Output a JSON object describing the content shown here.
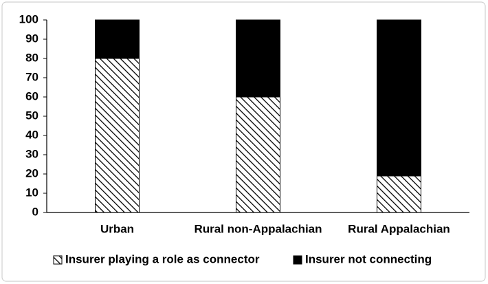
{
  "chart_data": {
    "type": "stacked_bar",
    "categories": [
      "Urban",
      "Rural non-Appalachian",
      "Rural Appalachian"
    ],
    "series": [
      {
        "name": "Insurer playing a role as connector",
        "color": "#000000",
        "fill": "hatch",
        "values": [
          80,
          60,
          19
        ]
      },
      {
        "name": "Insurer not connecting",
        "color": "#000000",
        "fill": "solid",
        "values": [
          20,
          40,
          81
        ]
      }
    ],
    "ylim": [
      0,
      100
    ],
    "yticks": [
      0,
      10,
      20,
      30,
      40,
      50,
      60,
      70,
      80,
      90,
      100
    ],
    "grid": false,
    "legend": "bottom"
  }
}
